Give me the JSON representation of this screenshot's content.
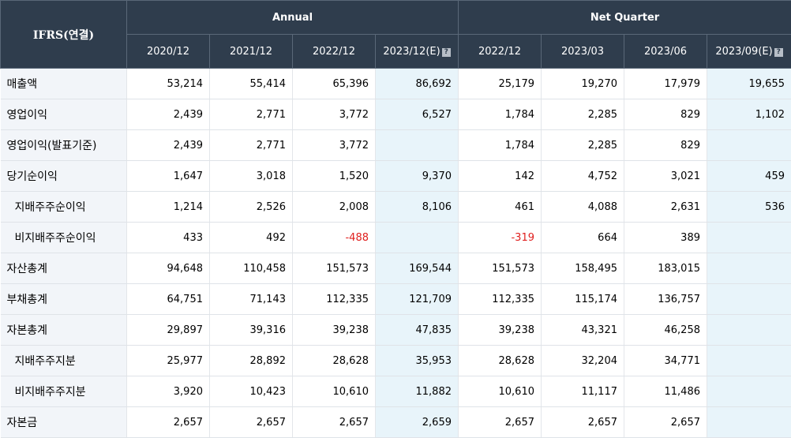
{
  "header": {
    "corner": "IFRS(연결)",
    "groups": [
      {
        "label": "Annual"
      },
      {
        "label": "Net Quarter"
      }
    ],
    "periods": [
      {
        "label": "2020/12",
        "est": false
      },
      {
        "label": "2021/12",
        "est": false
      },
      {
        "label": "2022/12",
        "est": false
      },
      {
        "label": "2023/12(E)",
        "est": true
      },
      {
        "label": "2022/12",
        "est": false
      },
      {
        "label": "2023/03",
        "est": false
      },
      {
        "label": "2023/06",
        "est": false
      },
      {
        "label": "2023/09(E)",
        "est": true
      }
    ],
    "help_icon": "question-mark-icon",
    "help_glyph": "?"
  },
  "rows": [
    {
      "label": "매출액",
      "sub": false,
      "values": [
        "53,214",
        "55,414",
        "65,396",
        "86,692",
        "25,179",
        "19,270",
        "17,979",
        "19,655"
      ]
    },
    {
      "label": "영업이익",
      "sub": false,
      "values": [
        "2,439",
        "2,771",
        "3,772",
        "6,527",
        "1,784",
        "2,285",
        "829",
        "1,102"
      ]
    },
    {
      "label": "영업이익(발표기준)",
      "sub": false,
      "values": [
        "2,439",
        "2,771",
        "3,772",
        "",
        "1,784",
        "2,285",
        "829",
        ""
      ]
    },
    {
      "label": "당기순이익",
      "sub": false,
      "values": [
        "1,647",
        "3,018",
        "1,520",
        "9,370",
        "142",
        "4,752",
        "3,021",
        "459"
      ]
    },
    {
      "label": "지배주주순이익",
      "sub": true,
      "values": [
        "1,214",
        "2,526",
        "2,008",
        "8,106",
        "461",
        "4,088",
        "2,631",
        "536"
      ]
    },
    {
      "label": "비지배주주순이익",
      "sub": true,
      "values": [
        "433",
        "492",
        "-488",
        "",
        "-319",
        "664",
        "389",
        ""
      ]
    },
    {
      "label": "자산총계",
      "sub": false,
      "values": [
        "94,648",
        "110,458",
        "151,573",
        "169,544",
        "151,573",
        "158,495",
        "183,015",
        ""
      ]
    },
    {
      "label": "부채총계",
      "sub": false,
      "values": [
        "64,751",
        "71,143",
        "112,335",
        "121,709",
        "112,335",
        "115,174",
        "136,757",
        ""
      ]
    },
    {
      "label": "자본총계",
      "sub": false,
      "values": [
        "29,897",
        "39,316",
        "39,238",
        "47,835",
        "39,238",
        "43,321",
        "46,258",
        ""
      ]
    },
    {
      "label": "지배주주지분",
      "sub": true,
      "values": [
        "25,977",
        "28,892",
        "28,628",
        "35,953",
        "28,628",
        "32,204",
        "34,771",
        ""
      ]
    },
    {
      "label": "비지배주주지분",
      "sub": true,
      "values": [
        "3,920",
        "10,423",
        "10,610",
        "11,882",
        "10,610",
        "11,117",
        "11,486",
        ""
      ]
    },
    {
      "label": "자본금",
      "sub": false,
      "values": [
        "2,657",
        "2,657",
        "2,657",
        "2,659",
        "2,657",
        "2,657",
        "2,657",
        ""
      ]
    }
  ],
  "colors": {
    "header_bg": "#2f3d4d",
    "label_bg": "#f2f5f9",
    "estimate_bg": "#e8f4fa",
    "negative": "#e0201f"
  }
}
